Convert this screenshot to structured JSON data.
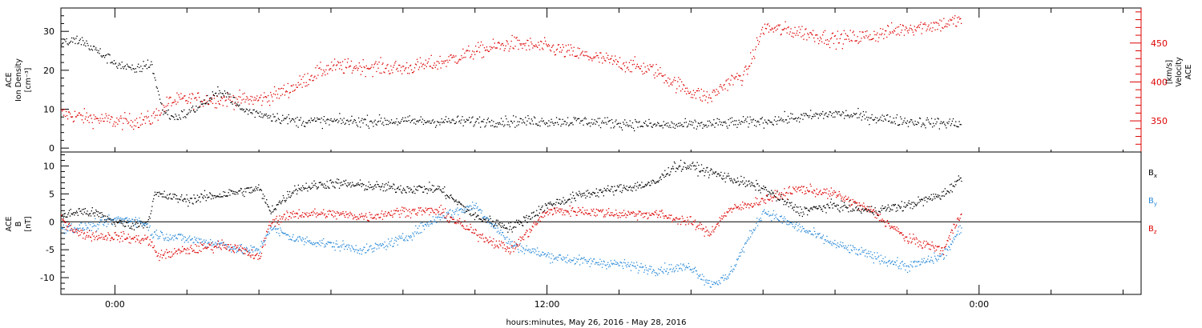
{
  "chart_data": [
    {
      "type": "scatter",
      "panel": "top",
      "left_axis_label": [
        "ACE",
        "Ion Density",
        "[cm⁻³]"
      ],
      "right_axis_label": [
        "ACE",
        "Velocity",
        "[km/s]"
      ],
      "left_ylim": [
        -1,
        36
      ],
      "right_ylim": [
        310,
        495
      ],
      "left_ticks": [
        0,
        10,
        20,
        30
      ],
      "right_ticks": [
        350,
        400,
        450
      ],
      "colors": {
        "density": "#000000",
        "velocity": "#dd0000"
      },
      "series": [
        {
          "axis": "left",
          "color": "#000000",
          "x_hours": [
            -1.5,
            -1,
            -0.5,
            0,
            0.5,
            1,
            1.3,
            1.6,
            2,
            2.5,
            3,
            3.5,
            4,
            4.5,
            5,
            6,
            7,
            8,
            9,
            10,
            11,
            12,
            13,
            14,
            15,
            16,
            17,
            18,
            19,
            20,
            21,
            22,
            23,
            23.5
          ],
          "values": [
            27,
            28,
            25,
            22,
            20,
            22,
            10,
            8,
            9,
            12,
            15,
            10,
            9,
            8,
            7,
            7,
            7,
            7,
            7,
            7,
            7,
            7,
            7,
            6.5,
            6,
            6,
            6.5,
            7,
            8,
            9,
            8,
            7,
            6.5,
            6.5
          ]
        },
        {
          "axis": "right",
          "color": "#dd0000",
          "x_hours": [
            -1.5,
            -1,
            -0.5,
            0,
            0.5,
            1,
            1.5,
            2,
            3,
            4,
            4.5,
            5,
            5.5,
            6,
            7,
            8,
            9,
            10,
            11,
            12,
            13,
            14,
            15,
            15.5,
            16,
            16.5,
            17,
            17.5,
            18,
            19,
            20,
            21,
            22,
            23,
            23.5
          ],
          "values": [
            360,
            356,
            353,
            350,
            350,
            353,
            375,
            378,
            378,
            378,
            385,
            395,
            410,
            420,
            420,
            418,
            425,
            440,
            450,
            445,
            435,
            425,
            415,
            400,
            388,
            380,
            400,
            410,
            470,
            465,
            455,
            460,
            470,
            475,
            480
          ]
        }
      ]
    },
    {
      "type": "scatter",
      "panel": "bottom",
      "left_axis_label": [
        "ACE",
        "B",
        "[nT]"
      ],
      "ylim": [
        -13,
        12.5
      ],
      "ticks": [
        -10,
        -5,
        0,
        5,
        10
      ],
      "zero_line": true,
      "legend": [
        {
          "base": "B",
          "sub": "x",
          "color": "#000000"
        },
        {
          "base": "B",
          "sub": "y",
          "color": "#2b8ad8"
        },
        {
          "base": "B",
          "sub": "z",
          "color": "#dd0000"
        }
      ],
      "series": [
        {
          "name": "Bx",
          "color": "#000000",
          "x_hours": [
            -1.5,
            -1,
            -0.5,
            0,
            0.5,
            0.9,
            1.1,
            2,
            3,
            3.5,
            4,
            4.3,
            5,
            6,
            7,
            8,
            9,
            10,
            11,
            12,
            13,
            14,
            15,
            15.5,
            16,
            17,
            18,
            18.5,
            19,
            20,
            21,
            22,
            23,
            23.5
          ],
          "values": [
            1,
            2,
            1.5,
            0,
            -0.5,
            0,
            5,
            4,
            5,
            5.5,
            6,
            2,
            6,
            7,
            6.5,
            6,
            6,
            1,
            -1,
            3,
            5,
            6,
            7,
            10,
            10,
            8,
            6,
            4,
            2,
            3,
            2,
            3,
            5,
            8
          ]
        },
        {
          "name": "By",
          "color": "#2b8ad8",
          "x_hours": [
            -1.5,
            -1,
            -0.5,
            0,
            0.5,
            0.9,
            1,
            2,
            3,
            3.5,
            4,
            4.3,
            5,
            6,
            7,
            8,
            9,
            10,
            11,
            12,
            13,
            14,
            15,
            16,
            16.5,
            17,
            18,
            19,
            20,
            21,
            22,
            23,
            23.5
          ],
          "values": [
            -1,
            -1,
            -0.5,
            0.5,
            0.5,
            -0.5,
            -2,
            -3,
            -4,
            -5,
            -5,
            -1,
            -3,
            -4,
            -5,
            -3,
            1,
            3,
            -4,
            -6,
            -7,
            -7.5,
            -8.5,
            -8,
            -11,
            -10,
            2,
            -1,
            -4,
            -6,
            -8,
            -6,
            -1
          ]
        },
        {
          "name": "Bz",
          "color": "#dd0000",
          "x_hours": [
            -1.5,
            -1,
            -0.5,
            0,
            0.5,
            0.9,
            1.2,
            2,
            3,
            3.5,
            4,
            4.3,
            5,
            6,
            7,
            8,
            9,
            10,
            11,
            12,
            13,
            14,
            15,
            16,
            16.5,
            17,
            18,
            19,
            20,
            21,
            22,
            23,
            23.5
          ],
          "values": [
            0.5,
            -2,
            -2.5,
            -2.5,
            -3,
            -3,
            -6,
            -5,
            -4,
            -5,
            -6.5,
            0,
            1.5,
            1.5,
            1,
            2,
            2,
            -2,
            -5,
            2,
            2,
            1.5,
            1.5,
            0,
            -2,
            2,
            4,
            6,
            5,
            2,
            -3,
            -5,
            2
          ]
        }
      ]
    }
  ],
  "x_axis": {
    "title": "hours:minutes, May 26, 2016 - May 28, 2016",
    "range_hours": [
      -1.5,
      28.5
    ],
    "tick_labels": [
      {
        "hour": 0,
        "label": "0:00"
      },
      {
        "hour": 12,
        "label": "12:00"
      },
      {
        "hour": 24,
        "label": "0:00"
      }
    ],
    "minor_tick_step_hours": 2
  }
}
